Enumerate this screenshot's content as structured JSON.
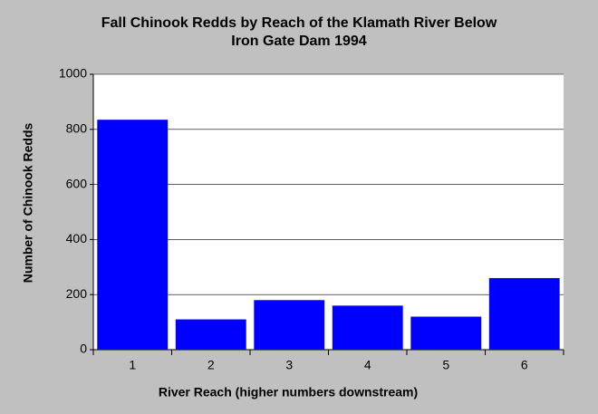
{
  "chart_data": {
    "type": "bar",
    "title": [
      "Fall Chinook Redds by Reach of the Klamath River Below",
      "Iron Gate Dam 1994"
    ],
    "x_label": "River Reach (higher numbers downstream)",
    "y_label": "Number of Chinook Redds",
    "categories": [
      "1",
      "2",
      "3",
      "4",
      "5",
      "6"
    ],
    "values": [
      835,
      110,
      180,
      160,
      120,
      260
    ],
    "color": "#0000ff",
    "ylim": [
      0,
      1000
    ],
    "yticks": [
      0,
      200,
      400,
      600,
      800,
      1000
    ],
    "grid": true
  }
}
